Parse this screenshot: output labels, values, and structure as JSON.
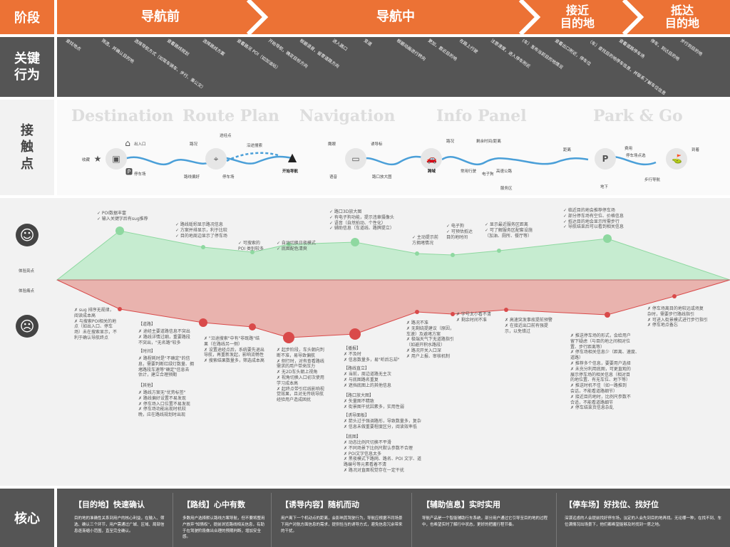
{
  "rows": {
    "stage": "阶段",
    "action": "关键\n行为",
    "touch": "接\n触\n点",
    "experience_high": "体验亮点",
    "experience_low": "体验痛点",
    "core": "核心"
  },
  "stages": [
    "导航前",
    "导航中",
    "接近\n目的地",
    "抵达\n目的地"
  ],
  "actions": [
    "查找地点",
    "筛选，并确认目的地",
    "选择导航方式（如驾车骑车、步行、乘公交）",
    "查看路线规划",
    "选择路线方案",
    "查看路况 POI（如加油站）",
    "开始导航，确定目标方向",
    "根据语音，留意道路方向",
    "进入路口",
    "变道",
    "根据动画进行转向",
    "更加，靠近目的地",
    "在路上行驶",
    "注意速度，进入停车附近",
    "(车）发布当前目的地情况",
    "查看出口附近，停车位",
    "（车）查找目的地停车信息，并联系了解车位信息",
    "查看道路停车场",
    "停车，到达目的地",
    "步行到目的地"
  ],
  "watermarks": [
    "Destination",
    "Route Plan",
    "Navigation",
    "Info Panel",
    "Park & Go"
  ],
  "touchpoints": {
    "destination": [
      "收藏",
      "出入口",
      "停车场"
    ],
    "route": [
      "路况",
      "途经点",
      "沿途搜索",
      "路线偏好",
      "停车场"
    ],
    "nav": [
      "开始导航",
      "诱导标",
      "路口放大图",
      "鹰眼",
      "语音"
    ],
    "info": [
      "路况",
      "剩余时间/距离",
      "常用行驶",
      "电子狗",
      "高速公路",
      "服务区",
      "跨域"
    ],
    "park": [
      "距离",
      "停车场点选",
      "费用",
      "地下",
      "步行导航",
      "到着"
    ]
  },
  "highlights": {
    "destination": [
      "✓ POI数据丰富",
      "✓ 输入关键字后有sug推荐"
    ],
    "route": [
      "✓ 路线蚯蚓显示路况信息",
      "✓ 方案并排显示，利于比较",
      "✓ 目的地周边显示了停车场"
    ],
    "route2": [
      "✓ 可搜索的",
      "POI 类别较多"
    ],
    "nav1": [
      "✓ 自动切换日夜模式",
      "✓ 底图配色清爽"
    ],
    "nav2": [
      "✓ 路口3D放大图",
      "✓ 有电子狗功能，提示违章摄像头",
      "✓ 语音（自然拍动、个性化）",
      "✓ 辅助信息（车道线、路牌提立）"
    ],
    "info1": [
      "✓ 主动提示前",
      "方拥堵情况"
    ],
    "info2": [
      "✓ 电子狗",
      "✓ 可预估抵达",
      "目的地时间"
    ],
    "info3": [
      "✓ 显示最近服务区距离",
      "✓ 可了解服务区配套设施",
      "（加油、厕所、餐厅等）"
    ],
    "park": [
      "✓ 临近目的地会推荐停车场",
      "✓ 部分停车场有空位、价格信息",
      "✓ 抵达目的地会显示所需步行",
      "✓ 导航结束后可以看到相关信息"
    ]
  },
  "pains": {
    "destination": [
      "✗ sug 排序无规律，",
      "阅读成本高",
      "✗ 与搜索POI相关的地",
      "点（如出入口、停车",
      "场）未在搜索显示，不",
      "利于确认导航终点"
    ],
    "route_head": "【道路】",
    "route": [
      "✗ 途经主要道路信息不突出",
      "✗ 路线详情过细，重要路段",
      "不突出，\"无名路\"较多"
    ],
    "route_time_head": "【时间】",
    "route_time": [
      "✗ 路程耗时是\"不确定\"的信",
      "息，需要判断红绿灯数量、拥",
      "堵路段车速等\"确定\"信息去",
      "估计，建立合理预期"
    ],
    "route_other_head": "【其他】",
    "route_other": [
      "✗ 路线方案无\"优势标签\"",
      "✗ 路线偏好设置不易发现",
      "✗ 停车场入口位置不易发现",
      "✗ 停车场功能出现时机较",
      "晚，应在路线规划时出现"
    ],
    "search": [
      "✗ \"沿途搜索\"中有\"非既路\"结",
      "果（在路线另一侧）",
      "✗ 设置途经点后，系统要先退出",
      "导航，再重新发起，影响流畅性",
      "✗ 搜索结果数量多，筛选成本高"
    ],
    "nav1": [
      "✗ 起步阶段，车头朝向判",
      "断不准，易导致偏航",
      "✗ 侧行时，对有查看路线",
      "需求的用户带来压力",
      "✗ 无2D车头朝上视角",
      "✗ 视角切换入口初次使用",
      "学习成本高",
      "✗ 起终点带引红线影响视",
      "觉效果，且对无传统导航",
      "经验用户造成困扰"
    ],
    "nav2_head": "【播报】",
    "nav2": [
      "✗ 不及时",
      "✗ 信息数量多，易\"听后忘却\""
    ],
    "nav2_b_head": "【路线直立】",
    "nav2_b": [
      "✗ 当前，周边道路无主次",
      "✗ 与底图路名重复",
      "✗ 遮挡底图上的其他信息"
    ],
    "nav2_c_head": "【路口放大图】",
    "nav2_c": [
      "✗ 矢量图不精致",
      "✗ 街景图干扰因素多，实用性弱"
    ],
    "nav2_d_head": "【诱导面板】",
    "nav2_d": [
      "✗ 箭头过于强调路形，导致数量多，复杂",
      "✗ 信息未做重要程度区分，阅读效率低"
    ],
    "nav2_e_head": "【底图】",
    "nav2_e": [
      "✗ 动态比例尺切换不平滑",
      "✗ 不同场景下比例尺默认参数不合理",
      "✗ POI文字信息太多",
      "✗ 黑夜模式下路网、路名、POI 文字、道",
      "路编号等元素看着不清",
      "✗ 路况对直面视觉存在一定干扰"
    ],
    "info1": [
      "✗ 路况不准",
      "✗ 无剩绕提建议（原因，",
      "车速）及避堵方案",
      "✗ 极端天气下无道路指引",
      "（如避开积水路段）",
      "✗ 路况开关入口深",
      "✗ 用户上报、审核机制"
    ],
    "info2": [
      "✗ 字号太小看不清",
      "✗ 剩余时间不准"
    ],
    "info3": [
      "✗ 高速突发事故提前预警",
      "✗ 在接近出口前有强提",
      "示，以免错过"
    ],
    "park": [
      "✗ 推送停车场的形式，会给用户",
      "留下疑虑（与目的地之间相对位",
      "置、步行距离等）",
      "✗ 停车场相关信息少（距离、速度、",
      "道路）",
      "✗ 推荐多个信息，要要用户选择",
      "✗ 未充分利用底图，可更直观的",
      "展示停车场的相关信息（相对目",
      "的地位置、有无车位、地下等）",
      "✗ 推送时机不佳（如一路推到",
      "会话，不能看道路细节）",
      "✗ 接近目的地时，比例尺参数不",
      "合适，不能看道路细节",
      "✗ 停车结束页信息杂乱"
    ],
    "arrive": [
      "✗ 停车场离目的地较远或场复",
      "杂时，需要步行路线指引",
      "✗ 可进入街景模式进行步行指引",
      "✗ 停车地点备忘"
    ]
  },
  "core": [
    {
      "title": "【目的地】快速确认",
      "text": "目的地的准确性关系到用户的核心利益，在输入、筛选、确认三个环节，用户需通过广城、区域、局部信息逐渐缩小范围，直至完全确认。"
    },
    {
      "title": "【路线】心中有数",
      "text": "多数用户选择默认路线方案导航，但不要将整用户放弃\"知情权\"，提前浏览路线相关信息，有助于在驾驶阶段做出合理的预期判断，增加安全感。"
    },
    {
      "title": "【诱导内容】随机而动",
      "text": "用户离下一个机动点的距离，会影响其驾驶行为，导航应根据不同场景下用户对航方面信息的需求，提供恰当的诱导方式，避免信息冗余带来的干扰。"
    },
    {
      "title": "【辅助信息】实时实用",
      "text": "导航产品是一个智能辅助行车系统，部分用户通过它引导至目的地的过程中，也希望实时了解行中状态，更好的把握行程节奏。"
    },
    {
      "title": "【停车场】好找位、找好位",
      "text": "深谋远虑的人会提前找好停车场，淡定的人会先到目的地再找。无论哪一种，在找不到、车位满情况出场景下，他们都希望能够及时找到一席之地。"
    }
  ],
  "colors": {
    "orange": "#ec7235",
    "gray": "#555555",
    "green": "#8ed8a0",
    "red": "#d94a4a"
  }
}
